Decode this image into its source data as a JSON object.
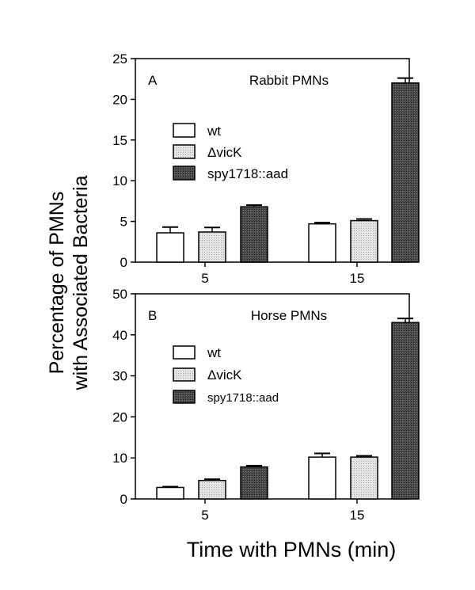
{
  "figure": {
    "ylabel_line1": "Percentage of PMNs",
    "ylabel_line2": "with Associated Bacteria",
    "xlabel": "Time with PMNs  (min)"
  },
  "colors": {
    "wt": "#ffffff",
    "vicK": "#d9d9d9",
    "spy": "#3a3a3a",
    "axis": "#000000"
  },
  "chart_data": [
    {
      "type": "bar",
      "panel_letter": "A",
      "title": "Rabbit PMNs",
      "categories": [
        "5",
        "15"
      ],
      "ylim": [
        0,
        25
      ],
      "yticks": [
        0,
        5,
        10,
        15,
        20,
        25
      ],
      "legend_placement": "left",
      "series": [
        {
          "name": "wt",
          "values": [
            3.6,
            4.7
          ],
          "errors": [
            0.7,
            0.15
          ]
        },
        {
          "name": "ΔvicK",
          "values": [
            3.7,
            5.1
          ],
          "errors": [
            0.55,
            0.2
          ]
        },
        {
          "name": "spy1718::aad",
          "values": [
            6.8,
            22.0
          ],
          "errors": [
            0.2,
            0.6
          ]
        }
      ]
    },
    {
      "type": "bar",
      "panel_letter": "B",
      "title": "Horse PMNs",
      "categories": [
        "5",
        "15"
      ],
      "ylim": [
        0,
        50
      ],
      "yticks": [
        0,
        10,
        20,
        30,
        40,
        50
      ],
      "legend_placement": "left",
      "series": [
        {
          "name": "wt",
          "values": [
            2.8,
            10.2
          ],
          "errors": [
            0.2,
            0.9
          ]
        },
        {
          "name": "ΔvicK",
          "values": [
            4.5,
            10.2
          ],
          "errors": [
            0.3,
            0.3
          ]
        },
        {
          "name": "spy1718::aad",
          "values": [
            7.8,
            43.0
          ],
          "errors": [
            0.3,
            1.0
          ]
        }
      ]
    }
  ]
}
